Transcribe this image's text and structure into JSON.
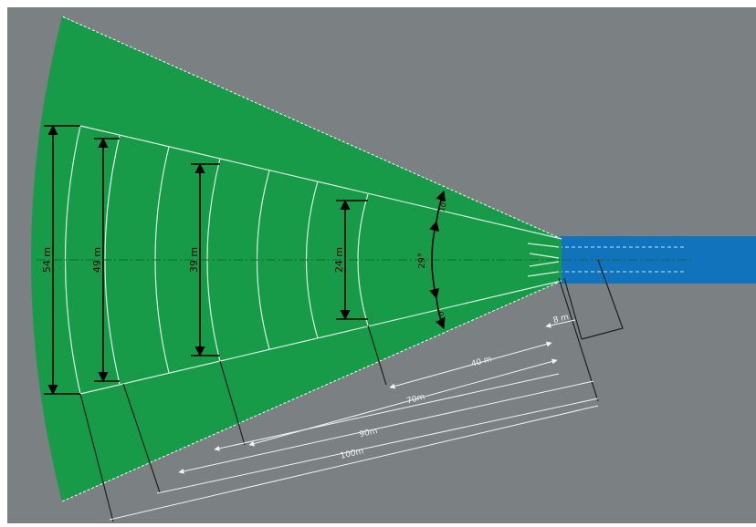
{
  "colors": {
    "background": "#7b8083",
    "sector": "#179b49",
    "channel": "#1273bd",
    "guide_lines": "#d9f3e3",
    "dimension": "#000000",
    "extension": "#1f1f1f",
    "white_dim": "#f2f2f2"
  },
  "labels": {
    "width_54": "54 m",
    "width_49": "49 m",
    "width_39": "39 m",
    "width_24": "24 m",
    "angle_total": "29°",
    "angle_upper": "10°",
    "angle_lower": "10°",
    "dist_8": "8 m",
    "dist_40": "40 m",
    "dist_70": "70m",
    "dist_90": "90m",
    "dist_100": "100m"
  }
}
